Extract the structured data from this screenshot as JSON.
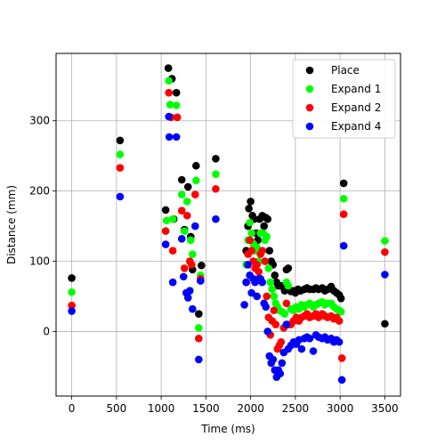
{
  "chart_data": {
    "type": "scatter",
    "title": "",
    "xlabel": "Time (ms)",
    "ylabel": "Distance (mm)",
    "xlim": [
      -175,
      3675
    ],
    "ylim": [
      -92,
      396
    ],
    "xticks": [
      0,
      500,
      1000,
      1500,
      2000,
      2500,
      3000,
      3500
    ],
    "yticks": [
      0,
      100,
      200,
      300
    ],
    "grid": true,
    "legend_position": "top-right",
    "series": [
      {
        "name": "Place",
        "color": "#000000",
        "points": [
          [
            0,
            76
          ],
          [
            540,
            272
          ],
          [
            1050,
            173
          ],
          [
            1080,
            375
          ],
          [
            1120,
            360
          ],
          [
            1140,
            160
          ],
          [
            1170,
            340
          ],
          [
            1230,
            216
          ],
          [
            1260,
            145
          ],
          [
            1300,
            206
          ],
          [
            1330,
            135
          ],
          [
            1350,
            88
          ],
          [
            1390,
            236
          ],
          [
            1420,
            25
          ],
          [
            1450,
            94
          ],
          [
            1610,
            246
          ],
          [
            1950,
            115
          ],
          [
            1970,
            150
          ],
          [
            1980,
            175
          ],
          [
            2000,
            185
          ],
          [
            2020,
            165
          ],
          [
            2040,
            160
          ],
          [
            2060,
            140
          ],
          [
            2080,
            130
          ],
          [
            2100,
            160
          ],
          [
            2130,
            165
          ],
          [
            2150,
            150
          ],
          [
            2170,
            162
          ],
          [
            2190,
            160
          ],
          [
            2210,
            115
          ],
          [
            2230,
            100
          ],
          [
            2250,
            95
          ],
          [
            2270,
            80
          ],
          [
            2290,
            70
          ],
          [
            2310,
            65
          ],
          [
            2330,
            65
          ],
          [
            2350,
            65
          ],
          [
            2380,
            58
          ],
          [
            2400,
            88
          ],
          [
            2420,
            90
          ],
          [
            2450,
            57
          ],
          [
            2480,
            58
          ],
          [
            2500,
            55
          ],
          [
            2530,
            60
          ],
          [
            2560,
            58
          ],
          [
            2600,
            60
          ],
          [
            2630,
            62
          ],
          [
            2660,
            60
          ],
          [
            2700,
            60
          ],
          [
            2730,
            62
          ],
          [
            2760,
            60
          ],
          [
            2800,
            62
          ],
          [
            2830,
            58
          ],
          [
            2860,
            60
          ],
          [
            2900,
            64
          ],
          [
            2930,
            58
          ],
          [
            2960,
            55
          ],
          [
            2990,
            52
          ],
          [
            3010,
            47
          ],
          [
            3040,
            211
          ],
          [
            3500,
            11
          ]
        ]
      },
      {
        "name": "Expand 1",
        "color": "#00ff00",
        "points": [
          [
            0,
            56
          ],
          [
            540,
            252
          ],
          [
            1060,
            158
          ],
          [
            1085,
            357
          ],
          [
            1100,
            323
          ],
          [
            1130,
            160
          ],
          [
            1170,
            322
          ],
          [
            1230,
            195
          ],
          [
            1260,
            143
          ],
          [
            1290,
            185
          ],
          [
            1330,
            130
          ],
          [
            1350,
            110
          ],
          [
            1390,
            215
          ],
          [
            1420,
            5
          ],
          [
            1440,
            80
          ],
          [
            1610,
            224
          ],
          [
            1950,
            95
          ],
          [
            1970,
            130
          ],
          [
            1990,
            155
          ],
          [
            2010,
            140
          ],
          [
            2030,
            125
          ],
          [
            2050,
            115
          ],
          [
            2070,
            120
          ],
          [
            2090,
            100
          ],
          [
            2110,
            140
          ],
          [
            2140,
            140
          ],
          [
            2160,
            130
          ],
          [
            2180,
            135
          ],
          [
            2200,
            90
          ],
          [
            2220,
            70
          ],
          [
            2240,
            60
          ],
          [
            2260,
            50
          ],
          [
            2280,
            40
          ],
          [
            2300,
            35
          ],
          [
            2320,
            30
          ],
          [
            2350,
            28
          ],
          [
            2380,
            25
          ],
          [
            2400,
            70
          ],
          [
            2420,
            65
          ],
          [
            2450,
            32
          ],
          [
            2480,
            30
          ],
          [
            2510,
            35
          ],
          [
            2540,
            32
          ],
          [
            2570,
            38
          ],
          [
            2600,
            35
          ],
          [
            2630,
            38
          ],
          [
            2660,
            40
          ],
          [
            2700,
            35
          ],
          [
            2730,
            38
          ],
          [
            2760,
            40
          ],
          [
            2800,
            42
          ],
          [
            2830,
            38
          ],
          [
            2860,
            40
          ],
          [
            2900,
            40
          ],
          [
            2930,
            35
          ],
          [
            2960,
            32
          ],
          [
            2990,
            30
          ],
          [
            3010,
            28
          ],
          [
            3040,
            189
          ],
          [
            3500,
            129
          ]
        ]
      },
      {
        "name": "Expand 2",
        "color": "#ff0000",
        "points": [
          [
            0,
            37
          ],
          [
            540,
            233
          ],
          [
            1050,
            143
          ],
          [
            1085,
            340
          ],
          [
            1110,
            305
          ],
          [
            1130,
            115
          ],
          [
            1180,
            305
          ],
          [
            1230,
            172
          ],
          [
            1260,
            90
          ],
          [
            1290,
            165
          ],
          [
            1320,
            100
          ],
          [
            1340,
            95
          ],
          [
            1380,
            195
          ],
          [
            1420,
            -10
          ],
          [
            1440,
            75
          ],
          [
            1610,
            203
          ],
          [
            1950,
            70
          ],
          [
            1970,
            110
          ],
          [
            1990,
            130
          ],
          [
            2010,
            115
          ],
          [
            2030,
            100
          ],
          [
            2050,
            90
          ],
          [
            2070,
            95
          ],
          [
            2090,
            85
          ],
          [
            2110,
            110
          ],
          [
            2130,
            115
          ],
          [
            2160,
            100
          ],
          [
            2180,
            50
          ],
          [
            2200,
            20
          ],
          [
            2220,
            -5
          ],
          [
            2240,
            15
          ],
          [
            2260,
            30
          ],
          [
            2280,
            10
          ],
          [
            2300,
            -25
          ],
          [
            2320,
            -20
          ],
          [
            2340,
            -15
          ],
          [
            2370,
            5
          ],
          [
            2400,
            40
          ],
          [
            2420,
            10
          ],
          [
            2450,
            10
          ],
          [
            2480,
            15
          ],
          [
            2510,
            20
          ],
          [
            2540,
            15
          ],
          [
            2570,
            20
          ],
          [
            2600,
            22
          ],
          [
            2630,
            25
          ],
          [
            2660,
            20
          ],
          [
            2700,
            22
          ],
          [
            2730,
            25
          ],
          [
            2760,
            20
          ],
          [
            2800,
            25
          ],
          [
            2830,
            22
          ],
          [
            2860,
            20
          ],
          [
            2900,
            22
          ],
          [
            2930,
            18
          ],
          [
            2960,
            20
          ],
          [
            2990,
            15
          ],
          [
            3020,
            -38
          ],
          [
            3040,
            167
          ],
          [
            3500,
            113
          ]
        ]
      },
      {
        "name": "Expand 4",
        "color": "#0000ff",
        "points": [
          [
            0,
            29
          ],
          [
            540,
            192
          ],
          [
            1050,
            124
          ],
          [
            1085,
            306
          ],
          [
            1090,
            277
          ],
          [
            1130,
            70
          ],
          [
            1170,
            277
          ],
          [
            1230,
            132
          ],
          [
            1250,
            78
          ],
          [
            1280,
            55
          ],
          [
            1300,
            48
          ],
          [
            1320,
            58
          ],
          [
            1350,
            32
          ],
          [
            1380,
            150
          ],
          [
            1420,
            -40
          ],
          [
            1440,
            72
          ],
          [
            1610,
            160
          ],
          [
            1930,
            38
          ],
          [
            1950,
            70
          ],
          [
            1970,
            95
          ],
          [
            1990,
            80
          ],
          [
            2010,
            55
          ],
          [
            2030,
            75
          ],
          [
            2050,
            70
          ],
          [
            2070,
            50
          ],
          [
            2090,
            75
          ],
          [
            2110,
            75
          ],
          [
            2130,
            70
          ],
          [
            2150,
            40
          ],
          [
            2170,
            35
          ],
          [
            2190,
            0
          ],
          [
            2210,
            -35
          ],
          [
            2230,
            -45
          ],
          [
            2250,
            -40
          ],
          [
            2270,
            -55
          ],
          [
            2290,
            -65
          ],
          [
            2310,
            -55
          ],
          [
            2330,
            -60
          ],
          [
            2350,
            -45
          ],
          [
            2370,
            -30
          ],
          [
            2400,
            10
          ],
          [
            2420,
            -25
          ],
          [
            2450,
            -20
          ],
          [
            2480,
            -15
          ],
          [
            2510,
            -18
          ],
          [
            2540,
            -12
          ],
          [
            2570,
            -25
          ],
          [
            2600,
            -10
          ],
          [
            2630,
            -8
          ],
          [
            2660,
            -10
          ],
          [
            2700,
            -28
          ],
          [
            2730,
            -5
          ],
          [
            2760,
            -8
          ],
          [
            2800,
            -10
          ],
          [
            2830,
            -8
          ],
          [
            2860,
            -12
          ],
          [
            2900,
            -10
          ],
          [
            2930,
            -15
          ],
          [
            2960,
            -12
          ],
          [
            2990,
            -15
          ],
          [
            3020,
            -69
          ],
          [
            3040,
            122
          ],
          [
            3500,
            81
          ]
        ]
      }
    ]
  }
}
